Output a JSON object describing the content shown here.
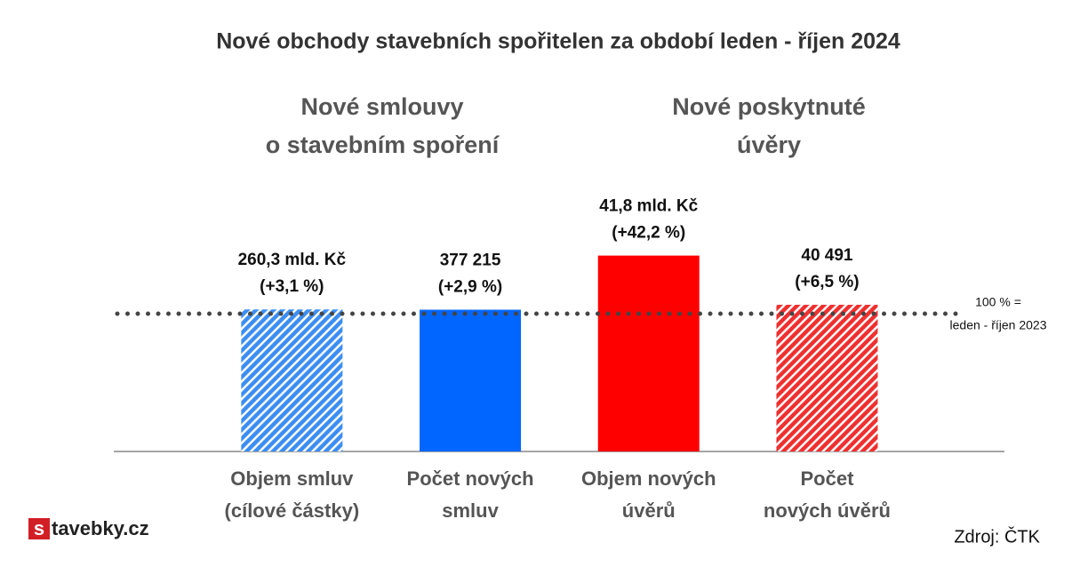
{
  "chart_data": {
    "type": "bar",
    "title": "Nové obchody stavebních spořitelen za období leden - říjen 2024",
    "group_labels": [
      [
        "Nové smlouvy",
        "o stavebním spoření"
      ],
      [
        "Nové poskytnuté",
        "úvěry"
      ]
    ],
    "categories": [
      [
        "Objem smluv",
        "(cílové částky)"
      ],
      [
        "Počet  nových",
        "smluv"
      ],
      [
        "Objem nových",
        "úvěrů"
      ],
      [
        "Počet",
        "nových úvěrů"
      ]
    ],
    "values": [
      3.1,
      2.9,
      42.2,
      6.5
    ],
    "value_labels": [
      "(+3,1 %)",
      "(+2,9 %)",
      "(+42,2 %)",
      "(+6,5 %)"
    ],
    "totals": [
      "260,3 mld. Kč",
      "377 215",
      "41,8 mld. Kč",
      "40 491"
    ],
    "colors": [
      "#3d8ef2",
      "#0066ff",
      "#ff0000",
      "#ef3030"
    ],
    "patterns": [
      "hatch",
      "solid",
      "solid",
      "hatch"
    ],
    "reference_value": 0,
    "reference_label": [
      "100 % =",
      "leden - říjen 2023"
    ],
    "ylim": [
      -100,
      60
    ],
    "logo": [
      "s",
      "tavebky.cz"
    ],
    "source": "Zdroj: ČTK"
  }
}
